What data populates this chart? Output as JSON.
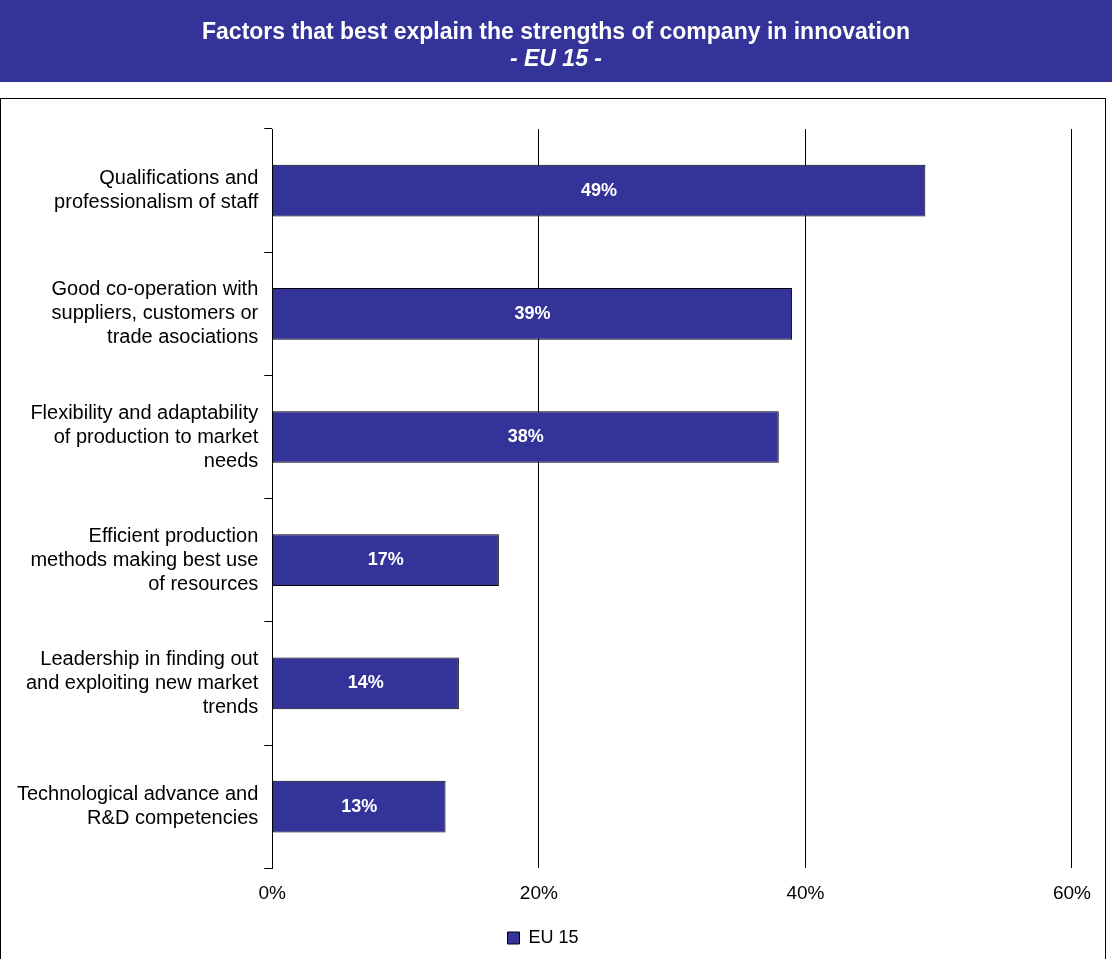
{
  "chart_data": {
    "type": "bar",
    "orientation": "horizontal",
    "title": "Factors that best explain the strengths of company in innovation",
    "subtitle": "- EU 15 -",
    "categories": [
      "Qualifications and professionalism of staff",
      "Good co-operation with suppliers, customers or trade asociations",
      "Flexibility and adaptability of production to market needs",
      "Efficient production methods making best use of resources",
      "Leadership in finding out and exploiting new market trends",
      "Technological advance and R&D competencies"
    ],
    "series": [
      {
        "name": "EU 15",
        "color": "#333399",
        "values": [
          49,
          39,
          38,
          17,
          14,
          13
        ],
        "value_labels": [
          "49%",
          "39%",
          "38%",
          "17%",
          "14%",
          "13%"
        ]
      }
    ],
    "xlim": [
      0,
      60
    ],
    "xticks": [
      {
        "value": 0,
        "label": "0%"
      },
      {
        "value": 20,
        "label": "20%"
      },
      {
        "value": 40,
        "label": "40%"
      },
      {
        "value": 60,
        "label": "60%"
      }
    ],
    "grid": "x",
    "legend": "bottom"
  }
}
